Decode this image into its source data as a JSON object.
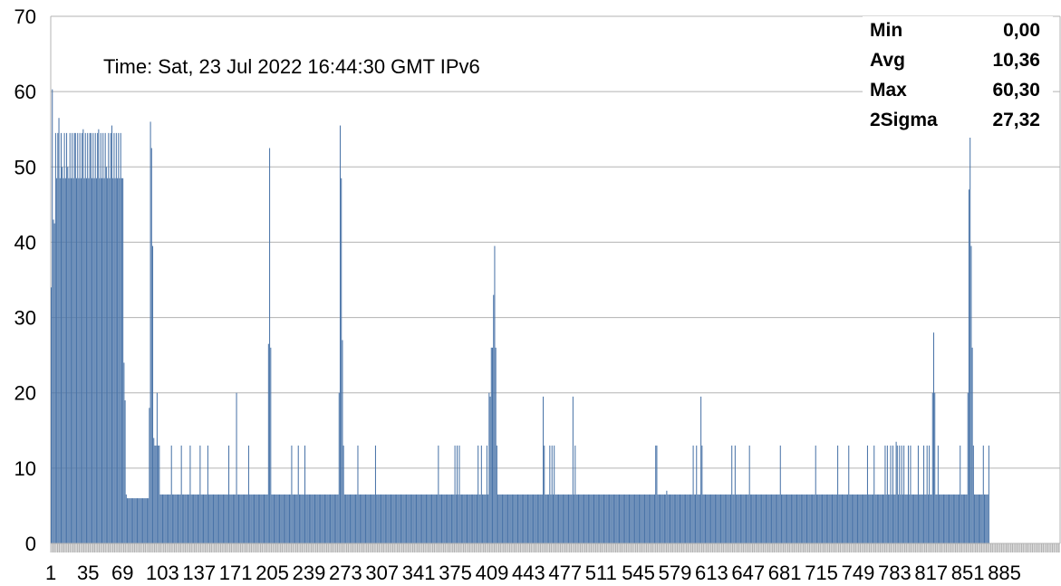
{
  "chart_data": {
    "type": "bar",
    "title": "",
    "xlabel": "",
    "ylabel": "",
    "ylim": [
      0,
      70
    ],
    "yticks": [
      "0",
      "10",
      "20",
      "30",
      "40",
      "50",
      "60",
      "70"
    ],
    "xtick_labels": [
      "1",
      "35",
      "69",
      "103",
      "137",
      "171",
      "205",
      "239",
      "273",
      "307",
      "341",
      "375",
      "409",
      "443",
      "477",
      "511",
      "545",
      "579",
      "613",
      "647",
      "681",
      "715",
      "749",
      "783",
      "817",
      "851",
      "885"
    ],
    "x_count": 915,
    "grid": "horizontal",
    "bar_color": "#4a74a8",
    "annotation": "Time: Sat, 23 Jul 2022 16:44:30 GMT IPv6",
    "stats": [
      {
        "label": "Min",
        "value": "0,00"
      },
      {
        "label": "Avg",
        "value": "10,36"
      },
      {
        "label": "Max",
        "value": "60,30"
      },
      {
        "label": "2Sigma",
        "value": "27,32"
      }
    ],
    "series": [
      {
        "values": [
          34,
          60.3,
          43,
          42.5,
          54.5,
          48.5,
          54.5,
          56.5,
          48.5,
          54.5,
          50,
          48.5,
          54.5,
          48.5,
          54.5,
          50,
          48.5,
          54.5,
          48.5,
          54.5,
          48.5,
          54.5,
          54.5,
          48.5,
          54.5,
          48.5,
          54.5,
          48.5,
          54.5,
          55,
          48.5,
          54.5,
          48.5,
          54.5,
          48.5,
          54.5,
          54.5,
          48.5,
          54.5,
          48.5,
          54.5,
          48.5,
          54.5,
          55,
          48.5,
          54.5,
          48.5,
          54.5,
          48.5,
          54.5,
          50,
          48.5,
          54.5,
          48.5,
          54.5,
          55.5,
          48.5,
          54.5,
          48.5,
          54.5,
          48.5,
          54.5,
          48.5,
          54.5,
          48.5,
          48.5,
          24,
          19,
          6.5,
          6,
          6,
          6,
          6,
          6,
          6,
          6,
          6,
          6,
          6,
          6,
          6,
          6,
          6,
          6,
          6,
          6,
          6,
          6,
          6,
          18,
          56,
          52.5,
          39.5,
          14,
          13,
          13,
          20,
          13,
          13,
          6.5,
          6.5,
          6.5,
          6.5,
          6.5,
          6.5,
          6.5,
          6.5,
          6.5,
          6.5,
          13,
          6.5,
          6.5,
          6.5,
          6.5,
          6.5,
          6.5,
          6.5,
          6.5,
          13,
          6.5,
          6.5,
          6.5,
          6.5,
          6.5,
          6.5,
          6.5,
          13,
          6.5,
          6.5,
          6.5,
          6.5,
          6.5,
          6.5,
          6.5,
          6.5,
          13,
          6.5,
          6.5,
          6.5,
          6.5,
          6.5,
          6.5,
          13,
          6.5,
          6.5,
          6.5,
          6.5,
          6.5,
          6.5,
          6.5,
          6.5,
          6.5,
          6.5,
          6.5,
          6.5,
          6.5,
          6.5,
          6.5,
          6.5,
          6.5,
          6.5,
          13,
          6.5,
          6.5,
          6.5,
          6.5,
          6.5,
          6.5,
          20,
          6.5,
          6.5,
          6.5,
          6.5,
          6.5,
          6.5,
          6.5,
          6.5,
          6.5,
          6.5,
          13,
          6.5,
          6.5,
          6.5,
          6.5,
          6.5,
          6.5,
          6.5,
          6.5,
          6.5,
          6.5,
          6.5,
          6.5,
          6.5,
          6.5,
          6.5,
          6.5,
          6.5,
          26.5,
          52.5,
          26,
          6.5,
          6.5,
          6.5,
          6.5,
          6.5,
          6.5,
          6.5,
          6.5,
          6.5,
          6.5,
          6.5,
          6.5,
          6.5,
          6.5,
          6.5,
          6.5,
          6.5,
          6.5,
          13,
          6.5,
          6.5,
          6.5,
          6.5,
          6.5,
          13,
          6.5,
          6.5,
          6.5,
          6.5,
          6.5,
          13,
          6.5,
          6.5,
          6.5,
          6.5,
          6.5,
          6.5,
          6.5,
          6.5,
          6.5,
          6.5,
          6.5,
          6.5,
          6.5,
          6.5,
          6.5,
          6.5,
          6.5,
          6.5,
          6.5,
          6.5,
          6.5,
          6.5,
          6.5,
          6.5,
          6.5,
          6.5,
          6.5,
          6.5,
          6.5,
          6.5,
          20,
          55.5,
          48.5,
          27,
          13,
          6.5,
          6.5,
          6.5,
          6.5,
          6.5,
          6.5,
          6.5,
          6.5,
          6.5,
          6.5,
          6.5,
          6.5,
          13,
          6.5,
          6.5,
          6.5,
          6.5,
          6.5,
          6.5,
          6.5,
          6.5,
          6.5,
          6.5,
          6.5,
          6.5,
          6.5,
          6.5,
          6.5,
          13,
          6.5,
          6.5,
          6.5,
          6.5,
          6.5,
          6.5,
          6.5,
          6.5,
          6.5,
          6.5,
          6.5,
          6.5,
          6.5,
          6.5,
          6.5,
          6.5,
          6.5,
          6.5,
          6.5,
          6.5,
          6.5,
          6.5,
          6.5,
          6.5,
          6.5,
          6.5,
          6.5,
          6.5,
          6.5,
          6.5,
          6.5,
          6.5,
          6.5,
          6.5,
          6.5,
          6.5,
          6.5,
          6.5,
          6.5,
          6.5,
          6.5,
          6.5,
          6.5,
          6.5,
          6.5,
          6.5,
          6.5,
          6.5,
          6.5,
          6.5,
          6.5,
          6.5,
          6.5,
          6.5,
          6.5,
          6.5,
          13,
          6.5,
          6.5,
          6.5,
          6.5,
          6.5,
          6.5,
          6.5,
          6.5,
          6.5,
          6.5,
          6.5,
          6.5,
          6.5,
          6.5,
          13,
          6.5,
          13,
          6.5,
          13,
          6.5,
          6.5,
          6.5,
          6.5,
          6.5,
          6.5,
          6.5,
          6.5,
          6.5,
          6.5,
          6.5,
          6.5,
          6.5,
          6.5,
          6.5,
          6.5,
          13,
          6.5,
          6.5,
          13,
          6.5,
          6.5,
          6.5,
          6.5,
          13,
          6.5,
          20,
          19.5,
          26,
          26,
          33,
          39.5,
          26,
          13,
          6.5,
          6.5,
          6.5,
          6.5,
          6.5,
          6.5,
          6.5,
          6.5,
          6.5,
          6.5,
          6.5,
          6.5,
          6.5,
          6.5,
          6.5,
          6.5,
          6.5,
          6.5,
          6.5,
          6.5,
          6.5,
          6.5,
          6.5,
          6.5,
          6.5,
          6.5,
          6.5,
          6.5,
          6.5,
          6.5,
          6.5,
          6.5,
          6.5,
          6.5,
          6.5,
          6.5,
          6.5,
          6.5,
          6.5,
          6.5,
          6.5,
          19.5,
          13,
          6.5,
          6.5,
          6.5,
          6.5,
          13,
          6.5,
          13,
          6.5,
          13,
          6.5,
          6.5,
          6.5,
          6.5,
          6.5,
          6.5,
          6.5,
          6.5,
          6.5,
          6.5,
          6.5,
          6.5,
          6.5,
          6.5,
          6.5,
          6.5,
          19.5,
          6.5,
          13,
          6.5,
          6.5,
          6.5,
          6.5,
          6.5,
          6.5,
          6.5,
          6.5,
          6.5,
          6.5,
          6.5,
          6.5,
          6.5,
          6.5,
          6.5,
          6.5,
          6.5,
          6.5,
          6.5,
          6.5,
          6.5,
          6.5,
          6.5,
          6.5,
          6.5,
          6.5,
          6.5,
          6.5,
          6.5,
          6.5,
          6.5,
          6.5,
          6.5,
          6.5,
          6.5,
          6.5,
          6.5,
          6.5,
          6.5,
          6.5,
          6.5,
          6.5,
          6.5,
          6.5,
          6.5,
          6.5,
          6.5,
          6.5,
          6.5,
          6.5,
          6.5,
          6.5,
          6.5,
          6.5,
          6.5,
          6.5,
          6.5,
          6.5,
          6.5,
          6.5,
          6.5,
          6.5,
          6.5,
          6.5,
          6.5,
          6.5,
          6.5,
          6.5,
          6.5,
          6.5,
          6.5,
          6.5,
          13,
          13,
          6.5,
          6.5,
          6.5,
          6.5,
          6.5,
          6.5,
          6.5,
          6.5,
          7,
          6.5,
          6.5,
          6.5,
          6.5,
          6.5,
          6.5,
          6.5,
          6.5,
          6.5,
          6.5,
          6.5,
          6.5,
          6.5,
          6.5,
          6.5,
          6.5,
          6.5,
          6.5,
          6.5,
          6.5,
          6.5,
          6.5,
          6.5,
          13,
          6.5,
          6.5,
          13,
          6.5,
          6.5,
          6.5,
          19.5,
          13,
          6.5,
          6.5,
          6.5,
          6.5,
          6.5,
          6.5,
          6.5,
          6.5,
          6.5,
          6.5,
          6.5,
          6.5,
          6.5,
          6.5,
          6.5,
          6.5,
          6.5,
          6.5,
          6.5,
          6.5,
          6.5,
          6.5,
          6.5,
          6.5,
          6.5,
          6.5,
          13,
          6.5,
          6.5,
          13,
          6.5,
          6.5,
          6.5,
          6.5,
          6.5,
          6.5,
          6.5,
          6.5,
          6.5,
          6.5,
          6.5,
          6.5,
          13,
          6.5,
          6.5,
          6.5,
          6.5,
          6.5,
          6.5,
          6.5,
          6.5,
          6.5,
          6.5,
          6.5,
          6.5,
          6.5,
          6.5,
          6.5,
          6.5,
          6.5,
          6.5,
          6.5,
          6.5,
          6.5,
          6.5,
          6.5,
          6.5,
          6.5,
          6.5,
          6.5,
          13,
          6.5,
          6.5,
          6.5,
          6.5,
          6.5,
          6.5,
          6.5,
          6.5,
          6.5,
          6.5,
          6.5,
          6.5,
          6.5,
          6.5,
          6.5,
          6.5,
          6.5,
          6.5,
          6.5,
          6.5,
          6.5,
          6.5,
          6.5,
          6.5,
          6.5,
          6.5,
          6.5,
          6.5,
          6.5,
          6.5,
          6.5,
          13,
          6.5,
          6.5,
          6.5,
          6.5,
          6.5,
          6.5,
          6.5,
          6.5,
          6.5,
          6.5,
          6.5,
          6.5,
          6.5,
          6.5,
          6.5,
          6.5,
          6.5,
          6.5,
          6.5,
          13,
          6.5,
          6.5,
          6.5,
          6.5,
          6.5,
          6.5,
          6.5,
          6.5,
          6.5,
          13,
          6.5,
          6.5,
          6.5,
          6.5,
          6.5,
          6.5,
          6.5,
          6.5,
          6.5,
          6.5,
          6.5,
          6.5,
          6.5,
          6.5,
          6.5,
          6.5,
          13,
          6.5,
          6.5,
          6.5,
          6.5,
          6.5,
          13,
          6.5,
          6.5,
          6.5,
          6.5,
          6.5,
          6.5,
          6.5,
          6.5,
          6.5,
          13,
          6.5,
          13,
          6.5,
          6.5,
          13,
          6.5,
          13,
          6.5,
          6.5,
          13.5,
          13,
          6.5,
          13,
          6.5,
          13,
          6.5,
          13,
          6.5,
          6.5,
          6.5,
          13,
          6.5,
          13,
          6.5,
          6.5,
          6.5,
          6.5,
          6.5,
          6.5,
          13,
          6.5,
          6.5,
          6.5,
          6.5,
          13,
          6.5,
          6.5,
          13,
          6.5,
          13,
          6.5,
          6.5,
          20,
          28,
          20,
          6.5,
          6.5,
          13,
          6.5,
          6.5,
          6.5,
          6.5,
          6.5,
          6.5,
          6.5,
          6.5,
          6.5,
          6.5,
          6.5,
          6.5,
          6.5,
          6.5,
          6.5,
          6.5,
          6.5,
          6.5,
          6.5,
          13,
          6.5,
          6.5,
          6.5,
          6.5,
          6.5,
          6.5,
          20,
          47,
          57,
          39.5,
          26,
          13,
          6.5,
          6.5,
          6.5,
          6.5,
          6.5,
          6.5,
          6.5,
          6.5,
          13,
          6.5,
          6.5,
          6.5,
          6.5,
          13
        ]
      }
    ]
  }
}
